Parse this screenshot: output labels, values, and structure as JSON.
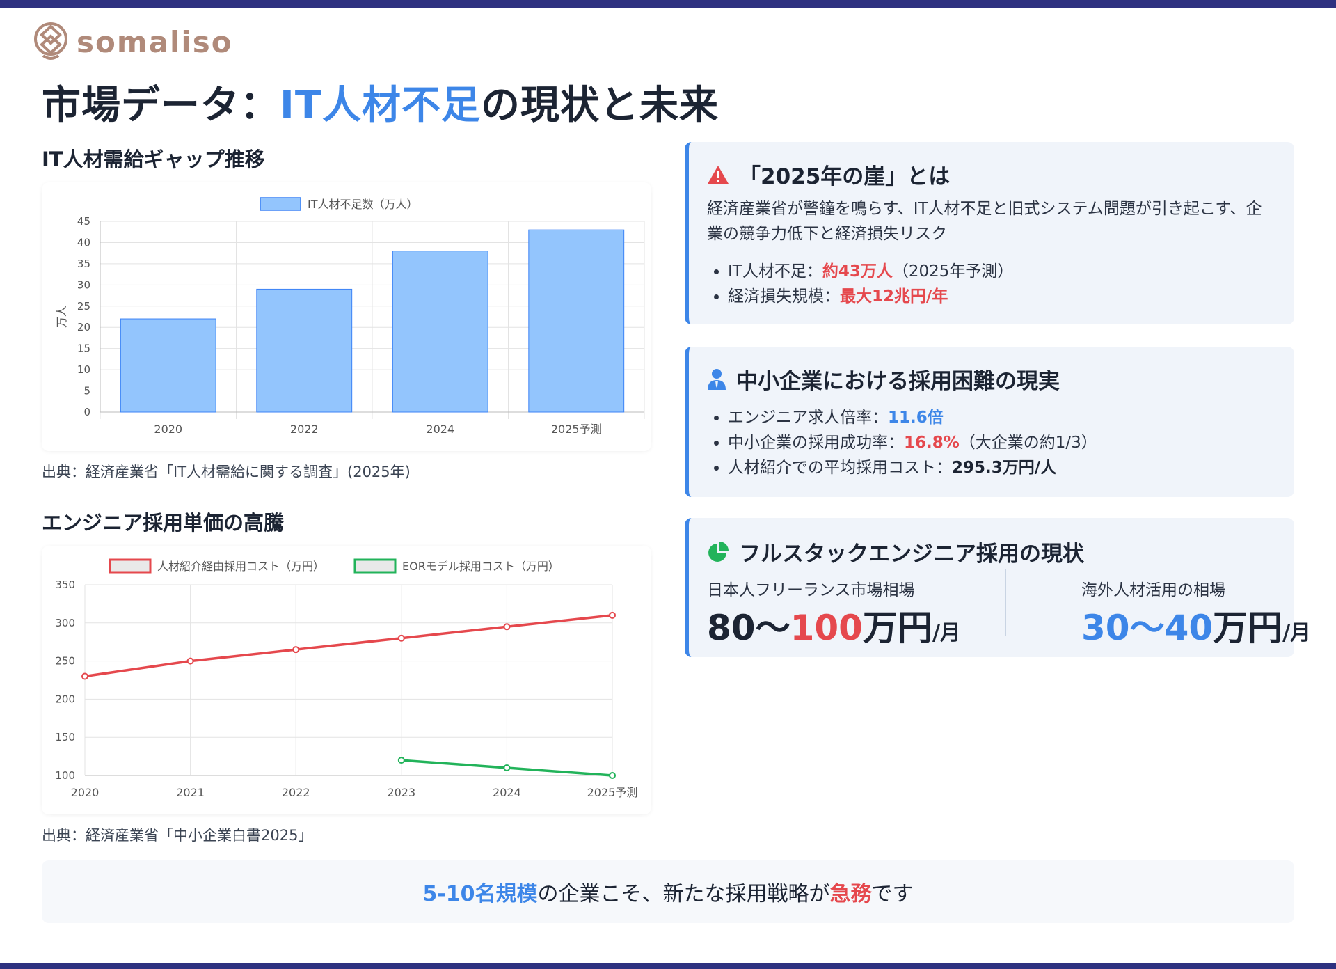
{
  "brand": {
    "name": "somaliso",
    "color": "#b08a7a"
  },
  "title": {
    "before": "市場データ：",
    "highlight": "IT人材不足",
    "after": "の現状と未来"
  },
  "chart1": {
    "section_title": "IT人材需給ギャップ推移",
    "source": "出典：経済産業省「IT人材需給に関する調査」(2025年)"
  },
  "chart2": {
    "section_title": "エンジニア採用単価の高騰",
    "source": "出典：経済産業省「中小企業白書2025」"
  },
  "chart_data": [
    {
      "type": "bar",
      "categories": [
        "2020",
        "2022",
        "2024",
        "2025予測"
      ],
      "series": [
        {
          "name": "IT人材不足数（万人）",
          "values": [
            22,
            29,
            38,
            43
          ]
        }
      ],
      "ylabel": "万人",
      "ylim": [
        0,
        45
      ],
      "yticks": [
        0,
        5,
        10,
        15,
        20,
        25,
        30,
        35,
        40,
        45
      ],
      "grid": true,
      "legend": "top",
      "colors": {
        "fill": "#93c5fd",
        "stroke": "#3b82f6"
      }
    },
    {
      "type": "line",
      "categories": [
        "2020",
        "2021",
        "2022",
        "2023",
        "2024",
        "2025予測"
      ],
      "series": [
        {
          "name": "人材紹介経由採用コスト（万円）",
          "values": [
            230,
            250,
            265,
            280,
            295,
            310
          ],
          "color": "#e5484d"
        },
        {
          "name": "EORモデル採用コスト（万円）",
          "values": [
            null,
            null,
            null,
            120,
            110,
            100
          ],
          "color": "#22b35a"
        }
      ],
      "ylim": [
        100,
        350
      ],
      "yticks": [
        100,
        150,
        200,
        250,
        300,
        350
      ],
      "grid": true,
      "legend": "top"
    }
  ],
  "card1": {
    "title": "「2025年の崖」とは",
    "icon": "warning-icon",
    "desc": "経済産業省が警鐘を鳴らす、IT人材不足と旧式システム問題が引き起こす、企業の競争力低下と経済損失リスク",
    "b1_label": "IT人材不足：",
    "b1_value": "約43万人",
    "b1_note": "（2025年予測）",
    "b2_label": "経済損失規模：",
    "b2_value": "最大12兆円/年"
  },
  "card2": {
    "title": "中小企業における採用困難の現実",
    "icon": "user-tie-icon",
    "b1_label": "エンジニア求人倍率：",
    "b1_value": "11.6倍",
    "b2_label": "中小企業の採用成功率：",
    "b2_value": "16.8%",
    "b2_note": "（大企業の約1/3）",
    "b3_label": "人材紹介での平均採用コスト：",
    "b3_value": "295.3万円/人"
  },
  "card3": {
    "title": "フルスタックエンジニア採用の現状",
    "icon": "pie-chart-icon",
    "left_label": "日本人フリーランス市場相場",
    "left_from": "80〜",
    "left_to": "100",
    "left_unit": "万円",
    "left_per": "/月",
    "right_label": "海外人材活用の相場",
    "right_range": "30〜40",
    "right_unit": "万円",
    "right_per": "/月"
  },
  "banner": {
    "highlight1": "5-10名規模",
    "middle": "の企業こそ、新たな採用戦略が",
    "highlight2": "急務",
    "end": "です"
  },
  "colors": {
    "accent_blue": "#3d86e8",
    "accent_red": "#e5484d",
    "navy": "#2e3180",
    "green": "#22b35a"
  }
}
